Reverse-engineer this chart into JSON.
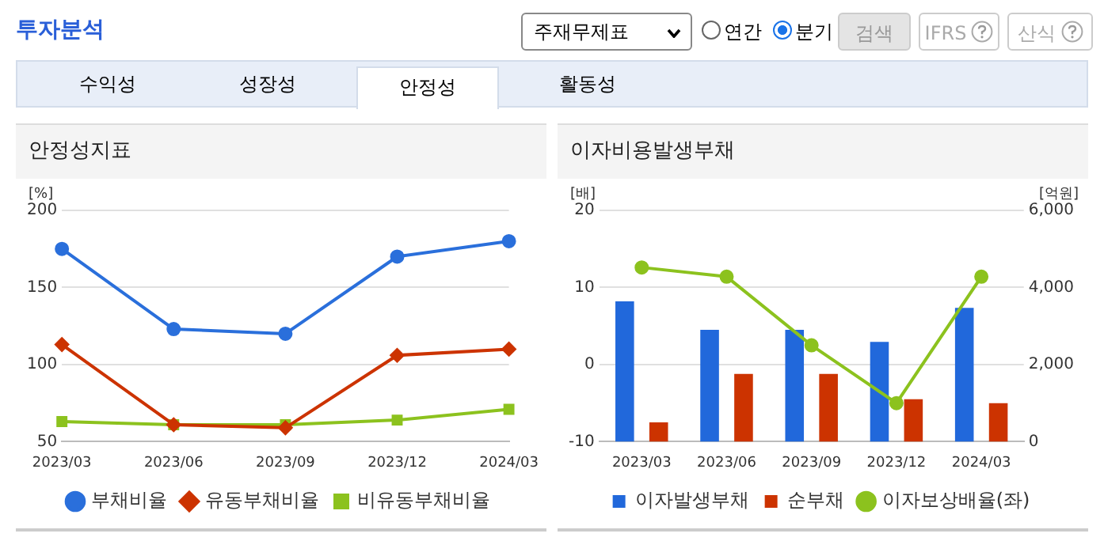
{
  "chart_data": [
    {
      "type": "other",
      "annotations": [
        "투자분석",
        "주재무제표",
        "연간",
        "분기",
        "검색",
        "IFRS",
        "산식",
        "수익성",
        "성장성",
        "안정성",
        "활동성"
      ]
    },
    {
      "type": "line",
      "title": "안정성지표",
      "ylabel": "[%]",
      "categories": [
        "2023/03",
        "2023/06",
        "2023/09",
        "2023/12",
        "2024/03"
      ],
      "series": [
        {
          "name": "부채비율",
          "color": "#2a6fdb",
          "marker": "circle",
          "values": [
            175,
            123,
            120,
            170,
            180
          ]
        },
        {
          "name": "유동부채비율",
          "color": "#cc3300",
          "marker": "diamond",
          "values": [
            113,
            61,
            59,
            106,
            110
          ]
        },
        {
          "name": "비유동부채비율",
          "color": "#8cc21e",
          "marker": "square",
          "values": [
            63,
            61,
            61,
            64,
            71
          ]
        }
      ],
      "ylim": [
        50,
        200
      ],
      "yticks": [
        50,
        100,
        150,
        200
      ],
      "grid": "y",
      "legend": "bottom"
    },
    {
      "type": "bar",
      "title": "이자비용발생부채",
      "ylabel": "[배]",
      "y2label": "[억원]",
      "categories": [
        "2023/03",
        "2023/06",
        "2023/09",
        "2023/12",
        "2024/03"
      ],
      "series": [
        {
          "name": "이자발생부채",
          "color": "#2168db",
          "axis": "y2",
          "values": [
            3640,
            2900,
            2900,
            2590,
            3470
          ]
        },
        {
          "name": "순부채",
          "color": "#cc3300",
          "axis": "y2",
          "values": [
            500,
            1760,
            1760,
            1100,
            1000
          ]
        },
        {
          "name": "이자보상배율(좌)",
          "type": "line",
          "color": "#8cc21e",
          "marker": "circle",
          "axis": "y",
          "values": [
            12.6,
            11.4,
            2.5,
            -5.0,
            11.4
          ]
        }
      ],
      "ylim": [
        -10,
        20
      ],
      "yticks": [
        -10,
        0,
        10,
        20
      ],
      "y2lim": [
        0,
        6000
      ],
      "y2ticks": [
        0,
        {
          "value": 2000,
          "label": "2,000"
        },
        {
          "value": 4000,
          "label": "4,000"
        },
        {
          "value": 6000,
          "label": "6,000"
        }
      ],
      "grid": "y",
      "legend": "bottom"
    }
  ]
}
